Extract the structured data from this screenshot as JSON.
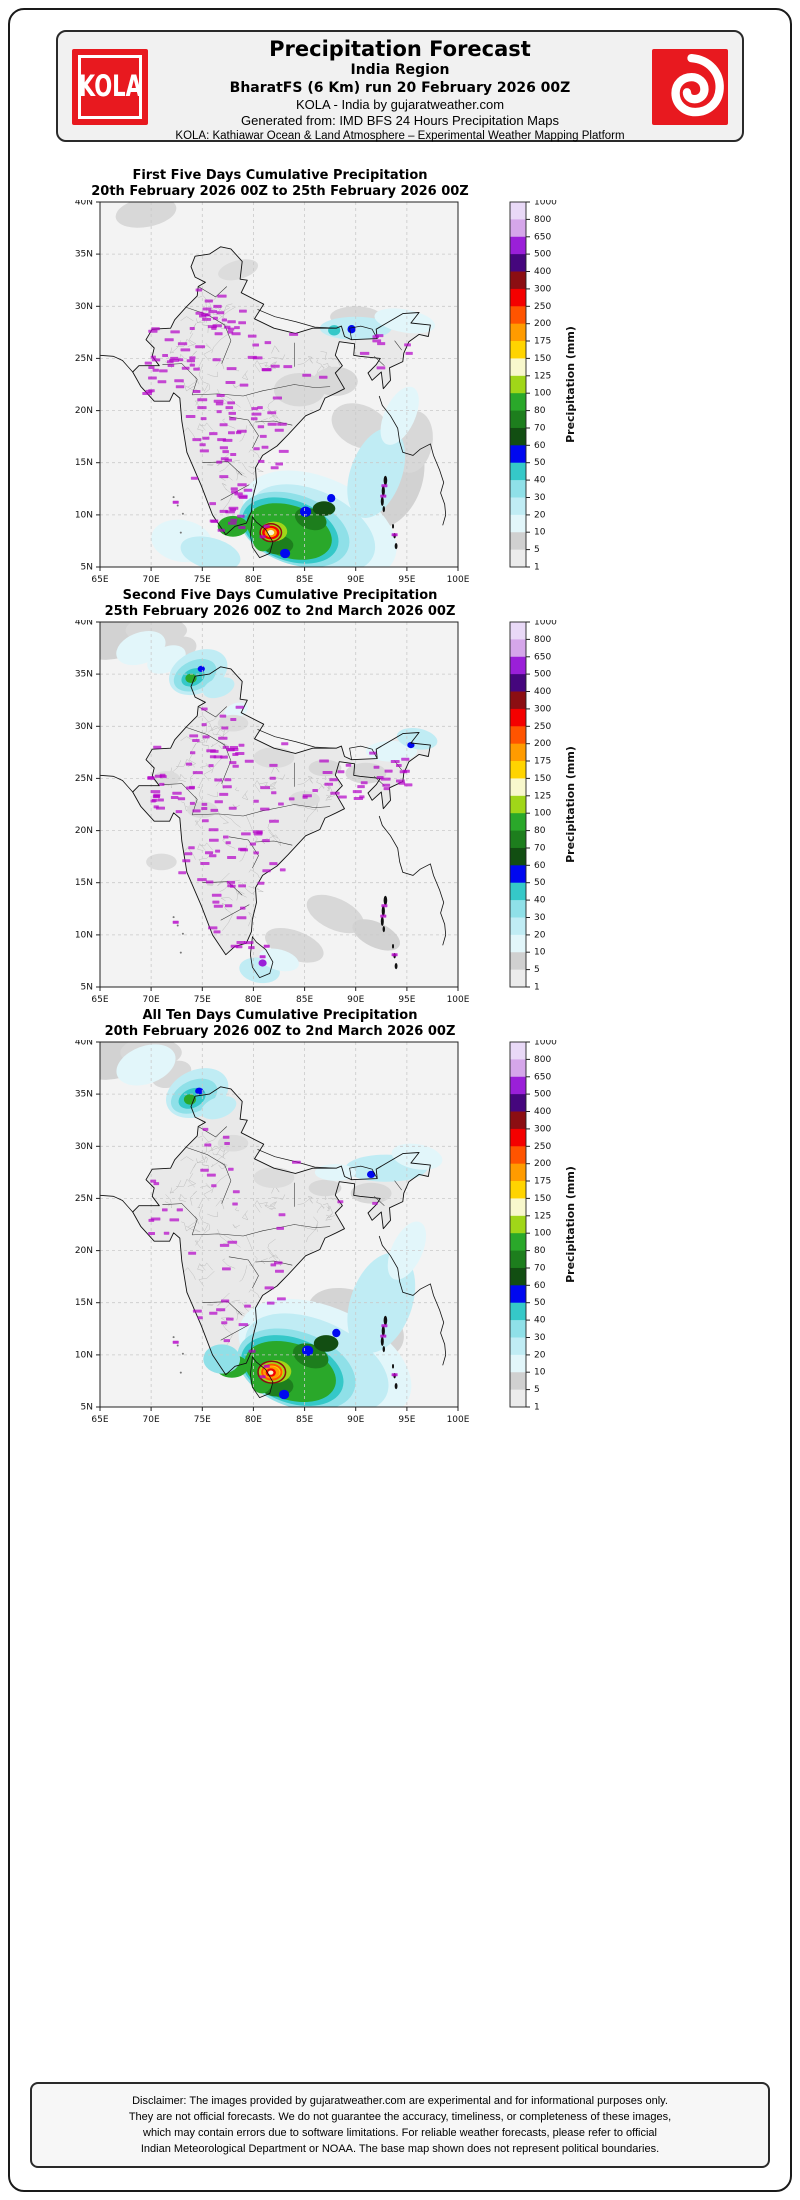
{
  "page": {
    "background": "#ffffff",
    "border_color": "#1a1a1a"
  },
  "header": {
    "logo_left_text": "KOLA",
    "brand_red": "#e8191f",
    "title": "Precipitation Forecast",
    "region_line": "India Region",
    "run_line": "BharatFS (6 Km) run 20 February 2026 00Z",
    "source_line": "KOLA - India by gujaratweather.com",
    "generated_line": "Generated from: IMD BFS 24 Hours Precipitation Maps",
    "platform_line": "KOLA: Kathiawar Ocean & Land Atmosphere – Experimental Weather Mapping Platform"
  },
  "panels": [
    {
      "title": "First Five Days Cumulative Precipitation",
      "subtitle": "20th February 2026 00Z to 25th February 2026 00Z"
    },
    {
      "title": "Second Five Days Cumulative Precipitation",
      "subtitle": "25th February 2026 00Z to 2nd March 2026 00Z"
    },
    {
      "title": "All Ten Days Cumulative Precipitation",
      "subtitle": "20th February 2026 00Z to 2nd March 2026 00Z"
    }
  ],
  "axes": {
    "lon_range": [
      65,
      100
    ],
    "lat_range": [
      5,
      40
    ],
    "lon_ticks": [
      "65E",
      "70E",
      "75E",
      "80E",
      "85E",
      "90E",
      "95E",
      "100E"
    ],
    "lat_ticks": [
      "40N",
      "35N",
      "30N",
      "25N",
      "20N",
      "15N",
      "10N",
      "5N"
    ]
  },
  "colorbar": {
    "label": "Precipitation (mm)",
    "tick_labels": [
      "1000",
      "800",
      "650",
      "500",
      "400",
      "300",
      "250",
      "200",
      "175",
      "150",
      "125",
      "100",
      "80",
      "70",
      "60",
      "50",
      "40",
      "30",
      "20",
      "10",
      "5",
      "1"
    ],
    "segment_colors_top_to_bottom": [
      "#e9d9f7",
      "#d5a6ea",
      "#9a1fd8",
      "#45067d",
      "#8c0e12",
      "#f40000",
      "#ff5400",
      "#ff9b00",
      "#ffd400",
      "#f8f8cc",
      "#a0d618",
      "#2aa82a",
      "#1d7e1d",
      "#124e12",
      "#0008f0",
      "#35c8c8",
      "#8fe0e8",
      "#c0ecf4",
      "#e2f6fa",
      "#d0d0d0",
      "#ebebeb"
    ]
  },
  "chart_data": [
    {
      "type": "heatmap",
      "title": "First Five Days Cumulative Precipitation",
      "subtitle": "20th February 2026 00Z to 25th February 2026 00Z",
      "lon_range": [
        65,
        100
      ],
      "lat_range": [
        5,
        40
      ],
      "colorbar_label": "Precipitation (mm)",
      "station_value_labels": {
        "color": "#b400c8",
        "legible": false,
        "approx_count": 150
      },
      "precip_regions": [
        [
          86,
          8,
          6.5,
          3.2,
          25,
          "#d2d2d2",
          "5-10"
        ],
        [
          93,
          13.5,
          3.5,
          5,
          20,
          "#d2d2d2",
          "5-10"
        ],
        [
          90.5,
          18.5,
          3,
          2,
          25,
          "#d8d8d8",
          "5-10"
        ],
        [
          95.5,
          17,
          2,
          3,
          10,
          "#d8d8d8",
          "5-10"
        ],
        [
          84.5,
          22,
          2.5,
          1.6,
          0,
          "#d8d8d8",
          "5-10"
        ],
        [
          88,
          22.8,
          2.2,
          1.4,
          0,
          "#d8d8d8",
          "5-10"
        ],
        [
          69.5,
          39,
          3,
          1.4,
          -10,
          "#d8d8d8",
          "5-10"
        ],
        [
          78.5,
          33.5,
          2,
          0.9,
          -15,
          "#dcdcdc",
          "5-10"
        ],
        [
          90,
          29,
          2.5,
          1,
          0,
          "#d8d8d8",
          "5-10"
        ],
        [
          86.5,
          9,
          8,
          4.5,
          25,
          "#e2f6fa",
          "10-20"
        ],
        [
          85.8,
          8.7,
          6.5,
          3.6,
          25,
          "#c0ecf4",
          "20-30"
        ],
        [
          92,
          14,
          2.5,
          4.5,
          20,
          "#c0ecf4",
          "20-30"
        ],
        [
          94.3,
          19.5,
          1.5,
          3,
          25,
          "#e2f6fa",
          "10-20"
        ],
        [
          73,
          7.5,
          3,
          2,
          10,
          "#e2f6fa",
          "10-20"
        ],
        [
          75.8,
          6.3,
          3,
          1.5,
          15,
          "#c0ecf4",
          "20-30"
        ],
        [
          90,
          27.9,
          3.5,
          1.1,
          0,
          "#c0ecf4",
          "20-30"
        ],
        [
          94.8,
          28.6,
          3,
          1.1,
          10,
          "#e2f6fa",
          "10-20"
        ],
        [
          87.9,
          27.7,
          0.6,
          0.5,
          0,
          "#35c8c8",
          "40-50"
        ],
        [
          89.6,
          27.8,
          0.4,
          0.4,
          0,
          "#0008f0",
          "50-60"
        ],
        [
          84,
          8.6,
          5.6,
          3.3,
          20,
          "#8fe0e8",
          "30-40"
        ],
        [
          83.6,
          8.5,
          4.9,
          2.9,
          20,
          "#35c8c8",
          "40-50"
        ],
        [
          83.5,
          8.4,
          4.3,
          2.5,
          18,
          "#2aa82a",
          "80-100"
        ],
        [
          85.6,
          9.6,
          1.6,
          1,
          20,
          "#1d7e1d",
          "70-80"
        ],
        [
          82.4,
          7.1,
          1.5,
          0.9,
          0,
          "#1d7e1d",
          "70-80"
        ],
        [
          86.9,
          10.6,
          1.1,
          0.7,
          0,
          "#124e12",
          "60-70"
        ],
        [
          85.1,
          10.3,
          0.55,
          0.5,
          0,
          "#0008f0",
          "50-60"
        ],
        [
          83.1,
          6.3,
          0.5,
          0.45,
          0,
          "#0008f0",
          "50-60"
        ],
        [
          87.6,
          11.6,
          0.4,
          0.4,
          0,
          "#0008f0",
          "50-60"
        ],
        [
          78,
          8.9,
          1.5,
          1,
          0,
          "#2aa82a",
          "80-100"
        ],
        [
          80.9,
          7.8,
          1,
          1.3,
          0,
          "#2aa82a",
          "80-100"
        ],
        [
          82,
          8.4,
          1.3,
          0.95,
          0,
          "#a0d618",
          "100-125"
        ],
        [
          81.7,
          8.3,
          0.85,
          0.65,
          0,
          "#f40000",
          "250-300"
        ],
        [
          81.7,
          8.3,
          0.6,
          0.45,
          0,
          "#ff9b00",
          "175-200"
        ],
        [
          81.7,
          8.3,
          0.33,
          0.26,
          0,
          "#f8f8cc",
          "125-150"
        ]
      ],
      "precip_rings": [
        [
          81.7,
          8.3,
          1.05,
          0.85,
          "#8c0e12",
          1.5,
          "300-400"
        ]
      ]
    },
    {
      "type": "heatmap",
      "title": "Second Five Days Cumulative Precipitation",
      "subtitle": "25th February 2026 00Z to 2nd March 2026 00Z",
      "lon_range": [
        65,
        100
      ],
      "lat_range": [
        5,
        40
      ],
      "colorbar_label": "Precipitation (mm)",
      "station_value_labels": {
        "color": "#b400c8",
        "legible": false,
        "approx_count": 150
      },
      "precip_regions": [
        [
          66.5,
          38.5,
          3.5,
          2,
          -15,
          "#d2d2d2",
          "5-10"
        ],
        [
          70.5,
          39.2,
          3,
          1.3,
          0,
          "#d8d8d8",
          "5-10"
        ],
        [
          72.5,
          37.3,
          2,
          1.2,
          -20,
          "#d8d8d8",
          "5-10"
        ],
        [
          69,
          37.5,
          2.5,
          1.5,
          -20,
          "#e2f6fa",
          "10-20"
        ],
        [
          71.5,
          36.4,
          2,
          1.2,
          -25,
          "#e2f6fa",
          "10-20"
        ],
        [
          74.6,
          35.2,
          3,
          2,
          -25,
          "#c0ecf4",
          "20-30"
        ],
        [
          74.3,
          34.9,
          2.2,
          1.4,
          -25,
          "#8fe0e8",
          "30-40"
        ],
        [
          74.1,
          34.7,
          1.2,
          0.8,
          -25,
          "#35c8c8",
          "40-50"
        ],
        [
          73.9,
          34.6,
          0.55,
          0.45,
          0,
          "#2aa82a",
          "80-100"
        ],
        [
          74.9,
          35.5,
          0.35,
          0.3,
          0,
          "#0008f0",
          "50-60"
        ],
        [
          76.6,
          33.7,
          1.6,
          0.9,
          -20,
          "#c0ecf4",
          "20-30"
        ],
        [
          78.3,
          31.5,
          1.2,
          0.7,
          -20,
          "#e2f6fa",
          "10-20"
        ],
        [
          78,
          30.3,
          1.5,
          0.8,
          0,
          "#dcdcdc",
          "5-10"
        ],
        [
          82,
          27,
          2,
          1,
          0,
          "#dcdcdc",
          "5-10"
        ],
        [
          87,
          26,
          1.6,
          0.8,
          0,
          "#d8d8d8",
          "5-10"
        ],
        [
          91,
          25.5,
          2,
          1,
          0,
          "#d8d8d8",
          "5-10"
        ],
        [
          85,
          23,
          1.5,
          0.8,
          0,
          "#dcdcdc",
          "5-10"
        ],
        [
          75,
          22,
          1.5,
          0.8,
          0,
          "#dcdcdc",
          "5-10"
        ],
        [
          71.5,
          25,
          1.3,
          0.7,
          0,
          "#dcdcdc",
          "5-10"
        ],
        [
          93.5,
          27.6,
          2.5,
          1,
          0,
          "#e2f6fa",
          "10-20"
        ],
        [
          96,
          28.8,
          2,
          1,
          10,
          "#c0ecf4",
          "20-30"
        ],
        [
          95.4,
          28.2,
          0.35,
          0.3,
          0,
          "#0008f0",
          "50-60"
        ],
        [
          84,
          9,
          3,
          1.4,
          20,
          "#d8d8d8",
          "5-10"
        ],
        [
          88,
          12,
          3,
          1.5,
          25,
          "#d8d8d8",
          "5-10"
        ],
        [
          92,
          10,
          2.5,
          1.2,
          25,
          "#d2d2d2",
          "5-10"
        ],
        [
          80.6,
          6.6,
          2,
          1.2,
          10,
          "#c0ecf4",
          "20-30"
        ],
        [
          82.5,
          7.6,
          2,
          1,
          15,
          "#e2f6fa",
          "10-20"
        ],
        [
          80.9,
          7.3,
          0.4,
          0.35,
          0,
          "#9a1fd8",
          "500-650"
        ],
        [
          71,
          17,
          1.5,
          0.8,
          0,
          "#dcdcdc",
          "5-10"
        ]
      ],
      "precip_rings": []
    },
    {
      "type": "heatmap",
      "title": "All Ten Days Cumulative Precipitation",
      "subtitle": "20th February 2026 00Z to 2nd March 2026 00Z",
      "lon_range": [
        65,
        100
      ],
      "lat_range": [
        5,
        40
      ],
      "colorbar_label": "Precipitation (mm)",
      "station_value_labels": {
        "color": "#b400c8",
        "legible": false,
        "approx_count": 45
      },
      "precip_regions": [
        [
          66.5,
          38.5,
          3.5,
          2,
          -15,
          "#d2d2d2",
          "5-10"
        ],
        [
          70,
          39,
          3,
          1.4,
          0,
          "#d8d8d8",
          "5-10"
        ],
        [
          72,
          36.9,
          2,
          1.2,
          -20,
          "#d8d8d8",
          "5-10"
        ],
        [
          69.5,
          37.8,
          3,
          1.8,
          -20,
          "#e2f6fa",
          "10-20"
        ],
        [
          74.5,
          35.1,
          3.2,
          2.2,
          -25,
          "#c0ecf4",
          "20-30"
        ],
        [
          74.2,
          34.8,
          2.4,
          1.5,
          -25,
          "#8fe0e8",
          "30-40"
        ],
        [
          74,
          34.6,
          1.4,
          0.9,
          -25,
          "#35c8c8",
          "40-50"
        ],
        [
          73.8,
          34.5,
          0.6,
          0.5,
          0,
          "#2aa82a",
          "80-100"
        ],
        [
          74.7,
          35.3,
          0.4,
          0.33,
          0,
          "#0008f0",
          "50-60"
        ],
        [
          76.6,
          33.7,
          1.8,
          1,
          -20,
          "#c0ecf4",
          "20-30"
        ],
        [
          82,
          27,
          2,
          1,
          0,
          "#dcdcdc",
          "5-10"
        ],
        [
          87,
          26,
          1.6,
          0.8,
          0,
          "#d8d8d8",
          "5-10"
        ],
        [
          91.5,
          25.5,
          2,
          1,
          0,
          "#d8d8d8",
          "5-10"
        ],
        [
          78,
          30.3,
          1.5,
          0.8,
          0,
          "#dcdcdc",
          "5-10"
        ],
        [
          93,
          27.9,
          4,
          1.3,
          0,
          "#c0ecf4",
          "20-30"
        ],
        [
          96,
          29,
          2.5,
          1.2,
          10,
          "#e2f6fa",
          "10-20"
        ],
        [
          88,
          27.5,
          2,
          0.8,
          0,
          "#e2f6fa",
          "10-20"
        ],
        [
          91.5,
          27.3,
          0.4,
          0.35,
          0,
          "#0008f0",
          "50-60"
        ],
        [
          90,
          13,
          5,
          3,
          25,
          "#d4d4d4",
          "5-10"
        ],
        [
          87,
          9.5,
          9,
          5,
          25,
          "#e2f6fa",
          "10-20"
        ],
        [
          86.2,
          9.2,
          7.5,
          4,
          25,
          "#c0ecf4",
          "20-30"
        ],
        [
          92.5,
          15,
          3,
          5,
          20,
          "#c0ecf4",
          "20-30"
        ],
        [
          95,
          20,
          1.5,
          3,
          25,
          "#e2f6fa",
          "10-20"
        ],
        [
          84.2,
          8.6,
          6,
          3.6,
          20,
          "#8fe0e8",
          "30-40"
        ],
        [
          83.8,
          8.5,
          5.2,
          3.1,
          20,
          "#35c8c8",
          "40-50"
        ],
        [
          83.6,
          8.4,
          4.6,
          2.7,
          18,
          "#2aa82a",
          "80-100"
        ],
        [
          85.6,
          9.9,
          1.8,
          1.1,
          20,
          "#1d7e1d",
          "70-80"
        ],
        [
          82.3,
          7,
          1.6,
          1,
          0,
          "#1d7e1d",
          "70-80"
        ],
        [
          87.1,
          11.1,
          1.2,
          0.8,
          0,
          "#124e12",
          "60-70"
        ],
        [
          85.3,
          10.4,
          0.55,
          0.5,
          0,
          "#0008f0",
          "50-60"
        ],
        [
          83,
          6.2,
          0.5,
          0.45,
          0,
          "#0008f0",
          "50-60"
        ],
        [
          88.1,
          12.1,
          0.4,
          0.4,
          0,
          "#0008f0",
          "50-60"
        ],
        [
          77.9,
          8.9,
          1.6,
          1.1,
          0,
          "#2aa82a",
          "80-100"
        ],
        [
          76.9,
          9.6,
          1.8,
          1.4,
          0,
          "#8fe0e8",
          "30-40"
        ],
        [
          80.8,
          7.7,
          1.1,
          1.4,
          0,
          "#2aa82a",
          "80-100"
        ],
        [
          82.1,
          8.4,
          1.6,
          1.1,
          0,
          "#a0d618",
          "100-125"
        ],
        [
          81.8,
          8.35,
          1.1,
          0.8,
          0,
          "#ffd400",
          "150-175"
        ],
        [
          81.75,
          8.3,
          0.8,
          0.6,
          0,
          "#ff9b00",
          "175-200"
        ],
        [
          81.7,
          8.3,
          0.5,
          0.4,
          0,
          "#f40000",
          "250-300"
        ],
        [
          81.7,
          8.3,
          0.25,
          0.2,
          0,
          "#f8f8cc",
          "125-150"
        ]
      ],
      "precip_rings": [
        [
          81.8,
          8.35,
          1.35,
          1.05,
          "#8c0e12",
          1.5,
          "300-400"
        ],
        [
          81.8,
          8.35,
          0.95,
          0.72,
          "#ff5400",
          2,
          "200-250"
        ]
      ]
    }
  ],
  "footer": {
    "lines": [
      "Disclaimer: The images provided by gujaratweather.com are experimental and for informational purposes only.",
      "They are not official forecasts. We do not guarantee the accuracy, timeliness, or completeness of these images,",
      "which may contain errors due to software limitations. For reliable weather forecasts, please refer to official",
      "Indian Meteorological Department or NOAA. The base map shown does not represent political boundaries."
    ]
  }
}
